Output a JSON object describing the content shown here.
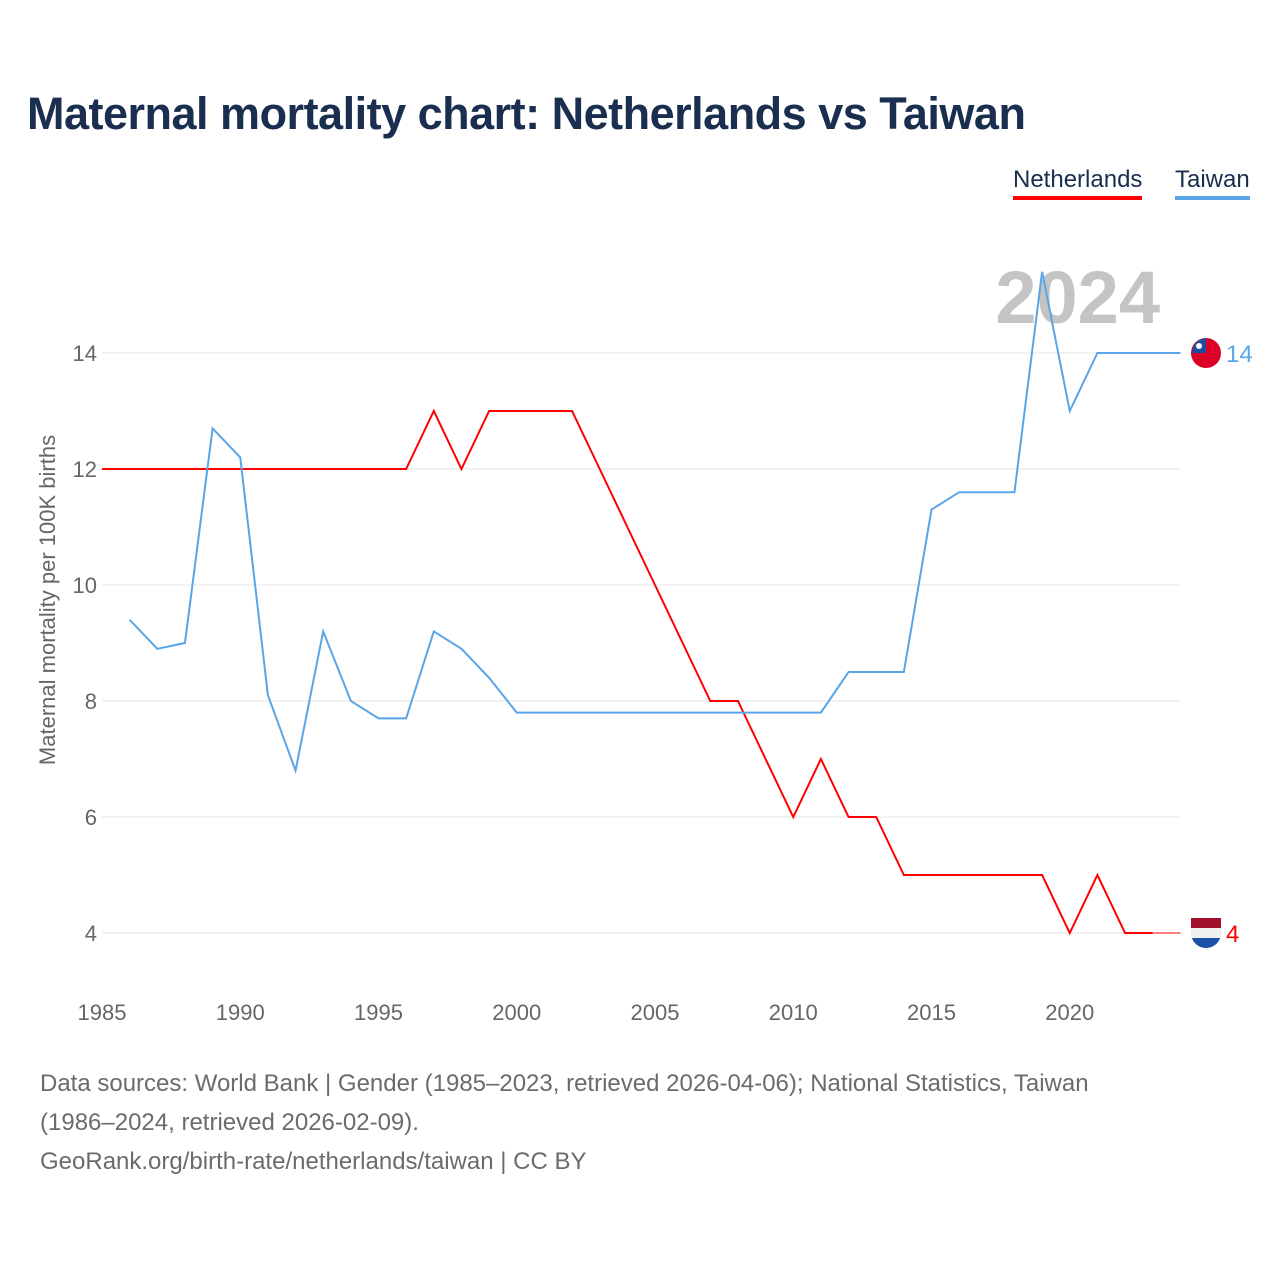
{
  "title": "Maternal mortality chart: Netherlands vs Taiwan",
  "footer": {
    "line1": "Data sources: World Bank | Gender (1985–2023, retrieved 2026-04-06); National Statistics, Taiwan",
    "line2": "(1986–2024, retrieved 2026-02-09).",
    "line3": "GeoRank.org/birth-rate/netherlands/taiwan | CC BY"
  },
  "chart_data": {
    "type": "line",
    "title": "Maternal mortality chart: Netherlands vs Taiwan",
    "ylabel": "Maternal mortality per 100K births",
    "xlabel": "",
    "year_label": "2024",
    "xlim": [
      1985,
      2024
    ],
    "ylim": [
      3,
      15.5
    ],
    "xticks": [
      1985,
      1990,
      1995,
      2000,
      2005,
      2010,
      2015,
      2020
    ],
    "yticks": [
      4,
      6,
      8,
      10,
      12,
      14
    ],
    "grid": true,
    "legend": "top-right",
    "series": [
      {
        "name": "Netherlands",
        "color": "#ff0000",
        "end_label": "4",
        "x": [
          1985,
          1986,
          1987,
          1988,
          1989,
          1990,
          1991,
          1992,
          1993,
          1994,
          1995,
          1996,
          1997,
          1998,
          1999,
          2000,
          2001,
          2002,
          2003,
          2004,
          2005,
          2006,
          2007,
          2008,
          2009,
          2010,
          2011,
          2012,
          2013,
          2014,
          2015,
          2016,
          2017,
          2018,
          2019,
          2020,
          2021,
          2022,
          2023
        ],
        "values": [
          12,
          12,
          12,
          12,
          12,
          12,
          12,
          12,
          12,
          12,
          12,
          12,
          13,
          12,
          13,
          13,
          13,
          13,
          12,
          11,
          10,
          9,
          8,
          8,
          7,
          6,
          7,
          6,
          6,
          5,
          5,
          5,
          5,
          5,
          5,
          4,
          5,
          4,
          4
        ]
      },
      {
        "name": "Taiwan",
        "color": "#5aa5e8",
        "end_label": "14",
        "x": [
          1986,
          1987,
          1988,
          1989,
          1990,
          1991,
          1992,
          1993,
          1994,
          1995,
          1996,
          1997,
          1998,
          1999,
          2000,
          2001,
          2002,
          2003,
          2004,
          2005,
          2006,
          2007,
          2008,
          2009,
          2010,
          2011,
          2012,
          2013,
          2014,
          2015,
          2016,
          2017,
          2018,
          2019,
          2020,
          2021,
          2022,
          2023,
          2024
        ],
        "values": [
          9.4,
          8.9,
          9.0,
          12.7,
          12.2,
          8.1,
          6.8,
          9.2,
          8.0,
          7.7,
          7.7,
          9.2,
          8.9,
          8.4,
          7.8,
          7.8,
          7.8,
          7.8,
          7.8,
          7.8,
          7.8,
          7.8,
          7.8,
          7.8,
          7.8,
          7.8,
          8.5,
          8.5,
          8.5,
          11.3,
          11.6,
          11.6,
          11.6,
          15.4,
          13.0,
          14.0,
          14.0,
          14.0,
          14.0
        ]
      }
    ]
  }
}
